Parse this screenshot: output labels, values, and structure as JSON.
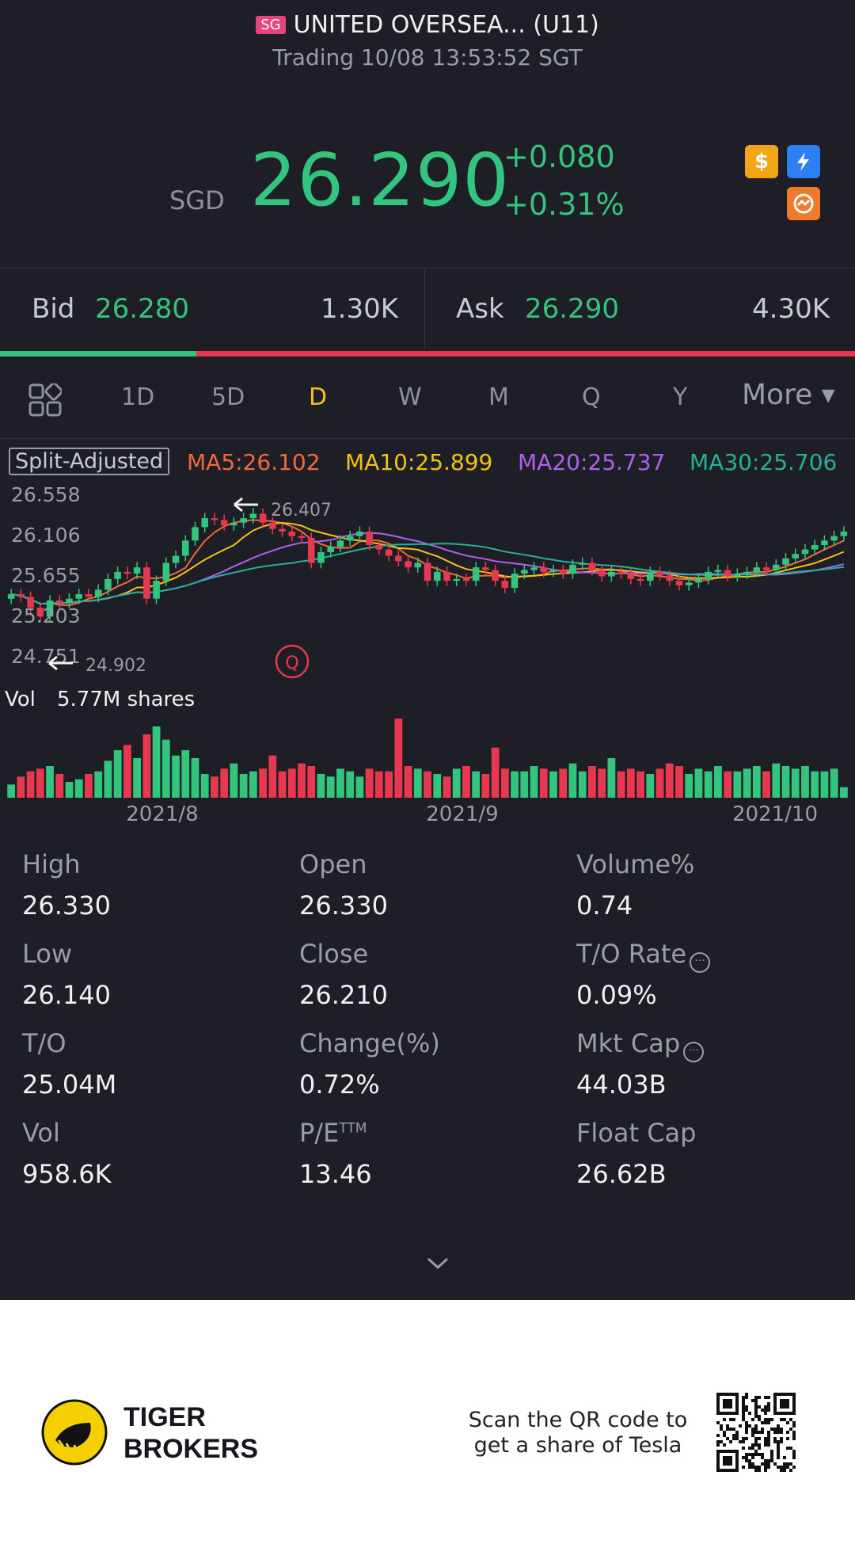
{
  "header": {
    "market_flag": "SG",
    "title": "UNITED OVERSEA... (U11)",
    "status": "Trading 10/08 13:53:52 SGT"
  },
  "quote": {
    "currency": "SGD",
    "price": "26.290",
    "change": "+0.080",
    "change_pct": "+0.31%",
    "badges": [
      "dollar-icon",
      "lightning-icon",
      "chart-badge-icon"
    ]
  },
  "bid_ask": {
    "bid_label": "Bid",
    "bid": "26.280",
    "bid_size": "1.30K",
    "ask_label": "Ask",
    "ask": "26.290",
    "ask_size": "4.30K",
    "bid_ratio": 0.23
  },
  "tabs": {
    "items": [
      "1D",
      "5D",
      "D",
      "W",
      "M",
      "Q",
      "Y"
    ],
    "active": "D",
    "more": "More"
  },
  "chart_data": {
    "type": "candlestick",
    "adjust_label": "Split-Adjusted",
    "ma": [
      {
        "label": "MA5:26.102",
        "color": "#f26a3a"
      },
      {
        "label": "MA10:25.899",
        "color": "#f3c214"
      },
      {
        "label": "MA20:25.737",
        "color": "#b25ef0"
      },
      {
        "label": "MA30:25.706",
        "color": "#25b09a"
      }
    ],
    "y_ticks": [
      "26.558",
      "26.106",
      "25.655",
      "25.203",
      "24.751"
    ],
    "high_annotation": "26.407",
    "low_annotation": "24.902",
    "event_marker": "Q",
    "volume_label": "Vol",
    "volume_value": "5.77M shares",
    "x_labels": [
      "2021/8",
      "2021/9",
      "2021/10"
    ],
    "closes": [
      25.45,
      25.42,
      25.3,
      25.2,
      25.38,
      25.35,
      25.4,
      25.45,
      25.42,
      25.5,
      25.62,
      25.7,
      25.68,
      25.75,
      25.4,
      25.6,
      25.8,
      25.88,
      26.05,
      26.2,
      26.3,
      26.28,
      26.22,
      26.25,
      26.3,
      26.35,
      26.25,
      26.18,
      26.15,
      26.1,
      26.08,
      25.8,
      25.92,
      25.98,
      26.05,
      26.1,
      26.15,
      26.0,
      25.95,
      25.88,
      25.82,
      25.75,
      25.8,
      25.6,
      25.7,
      25.6,
      25.62,
      25.6,
      25.75,
      25.72,
      25.6,
      25.52,
      25.68,
      25.72,
      25.75,
      25.7,
      25.72,
      25.68,
      25.78,
      25.8,
      25.72,
      25.65,
      25.7,
      25.68,
      25.62,
      25.6,
      25.7,
      25.66,
      25.6,
      25.55,
      25.58,
      25.62,
      25.7,
      25.72,
      25.65,
      25.68,
      25.7,
      25.75,
      25.72,
      25.78,
      25.85,
      25.9,
      25.95,
      26.0,
      26.05,
      26.1,
      26.15
    ],
    "volumes": [
      0.5,
      0.8,
      1.0,
      1.1,
      1.2,
      0.9,
      0.6,
      0.7,
      0.9,
      1.0,
      1.4,
      1.8,
      2.0,
      1.5,
      2.4,
      2.7,
      2.2,
      1.6,
      1.8,
      1.5,
      0.9,
      0.8,
      1.1,
      1.3,
      0.9,
      1.0,
      1.1,
      1.6,
      1.0,
      1.1,
      1.3,
      1.2,
      0.9,
      0.8,
      1.1,
      1.0,
      0.8,
      1.1,
      1.0,
      1.0,
      3.0,
      1.2,
      1.1,
      1.0,
      0.9,
      0.8,
      1.1,
      1.2,
      1.0,
      0.9,
      1.9,
      1.1,
      1.0,
      1.0,
      1.2,
      1.1,
      1.0,
      1.1,
      1.3,
      1.0,
      1.2,
      1.1,
      1.5,
      1.0,
      1.1,
      1.0,
      0.9,
      1.1,
      1.3,
      1.2,
      0.9,
      1.1,
      1.0,
      1.2,
      1.0,
      1.0,
      1.1,
      1.2,
      1.0,
      1.3,
      1.2,
      1.1,
      1.2,
      1.0,
      1.0,
      1.1,
      0.4
    ],
    "ylim": [
      24.751,
      26.558
    ]
  },
  "stats": [
    {
      "label": "High",
      "value": "26.330"
    },
    {
      "label": "Open",
      "value": "26.330"
    },
    {
      "label": "Volume%",
      "value": "0.74"
    },
    {
      "label": "Low",
      "value": "26.140"
    },
    {
      "label": "Close",
      "value": "26.210"
    },
    {
      "label": "T/O Rate",
      "value": "0.09%"
    },
    {
      "label": "T/O",
      "value": "25.04M"
    },
    {
      "label": "Change(%)",
      "value": "0.72%"
    },
    {
      "label": "Mkt Cap",
      "value": "44.03B"
    },
    {
      "label": "Vol",
      "value": "958.6K"
    },
    {
      "label": "P/E",
      "value": "13.46"
    },
    {
      "label": "Float Cap",
      "value": "26.62B"
    }
  ],
  "pe_superscript": "TTM",
  "footer": {
    "brand_line1": "TIGER",
    "brand_line2": "BROKERS",
    "scan_line1": "Scan the QR code to",
    "scan_line2": "get a share of Tesla"
  },
  "colors": {
    "up": "#33c47e",
    "down": "#e8384f",
    "bg": "#1e1f26",
    "accent": "#f3c214"
  }
}
